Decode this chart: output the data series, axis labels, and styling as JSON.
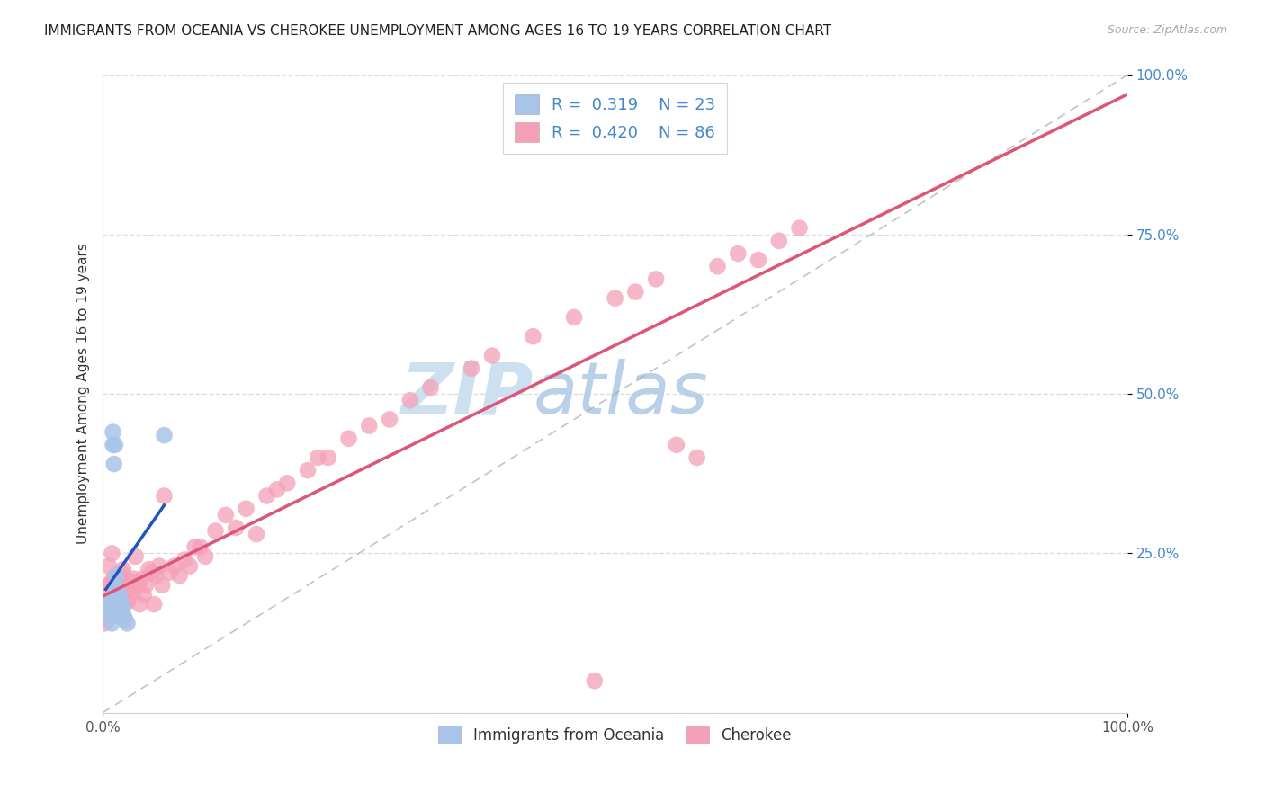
{
  "title": "IMMIGRANTS FROM OCEANIA VS CHEROKEE UNEMPLOYMENT AMONG AGES 16 TO 19 YEARS CORRELATION CHART",
  "source": "Source: ZipAtlas.com",
  "ylabel": "Unemployment Among Ages 16 to 19 years",
  "xlim": [
    0,
    1.0
  ],
  "ylim": [
    0,
    1.0
  ],
  "legend_r_oceania": "0.319",
  "legend_n_oceania": "23",
  "legend_r_cherokee": "0.420",
  "legend_n_cherokee": "86",
  "oceania_color": "#a8c4e8",
  "cherokee_color": "#f4a0b8",
  "oceania_line_color": "#2255bb",
  "cherokee_line_color": "#dd5577",
  "diagonal_color": "#aaaaaa",
  "watermark_zip": "ZIP",
  "watermark_atlas": "atlas",
  "watermark_color_zip": "#c8dff0",
  "watermark_color_atlas": "#b8cce8",
  "title_fontsize": 11,
  "source_fontsize": 9,
  "ylabel_fontsize": 11,
  "oceania_points_x": [
    0.005,
    0.007,
    0.008,
    0.009,
    0.01,
    0.01,
    0.011,
    0.012,
    0.013,
    0.013,
    0.014,
    0.015,
    0.015,
    0.016,
    0.017,
    0.018,
    0.019,
    0.02,
    0.021,
    0.022,
    0.024,
    0.06,
    0.003
  ],
  "oceania_points_y": [
    0.175,
    0.16,
    0.155,
    0.14,
    0.42,
    0.44,
    0.39,
    0.42,
    0.19,
    0.215,
    0.195,
    0.175,
    0.185,
    0.185,
    0.175,
    0.15,
    0.155,
    0.165,
    0.15,
    0.145,
    0.14,
    0.435,
    0.17
  ],
  "cherokee_points_x": [
    0.001,
    0.002,
    0.003,
    0.003,
    0.004,
    0.005,
    0.005,
    0.006,
    0.006,
    0.007,
    0.007,
    0.008,
    0.009,
    0.009,
    0.01,
    0.01,
    0.011,
    0.012,
    0.013,
    0.014,
    0.015,
    0.016,
    0.017,
    0.018,
    0.019,
    0.02,
    0.021,
    0.022,
    0.023,
    0.025,
    0.027,
    0.028,
    0.03,
    0.03,
    0.032,
    0.034,
    0.036,
    0.038,
    0.04,
    0.042,
    0.045,
    0.048,
    0.05,
    0.052,
    0.055,
    0.058,
    0.06,
    0.065,
    0.07,
    0.075,
    0.08,
    0.085,
    0.09,
    0.095,
    0.1,
    0.11,
    0.12,
    0.13,
    0.14,
    0.15,
    0.16,
    0.17,
    0.18,
    0.2,
    0.21,
    0.22,
    0.24,
    0.26,
    0.28,
    0.3,
    0.32,
    0.36,
    0.38,
    0.42,
    0.46,
    0.5,
    0.52,
    0.54,
    0.48,
    0.56,
    0.58,
    0.6,
    0.62,
    0.64,
    0.66,
    0.68
  ],
  "cherokee_points_y": [
    0.155,
    0.14,
    0.16,
    0.175,
    0.145,
    0.16,
    0.2,
    0.17,
    0.23,
    0.15,
    0.2,
    0.16,
    0.18,
    0.25,
    0.155,
    0.21,
    0.175,
    0.175,
    0.155,
    0.215,
    0.16,
    0.21,
    0.205,
    0.22,
    0.155,
    0.225,
    0.19,
    0.21,
    0.175,
    0.175,
    0.195,
    0.205,
    0.21,
    0.19,
    0.245,
    0.2,
    0.17,
    0.21,
    0.185,
    0.2,
    0.225,
    0.22,
    0.17,
    0.215,
    0.23,
    0.2,
    0.34,
    0.22,
    0.23,
    0.215,
    0.24,
    0.23,
    0.26,
    0.26,
    0.245,
    0.285,
    0.31,
    0.29,
    0.32,
    0.28,
    0.34,
    0.35,
    0.36,
    0.38,
    0.4,
    0.4,
    0.43,
    0.45,
    0.46,
    0.49,
    0.51,
    0.54,
    0.56,
    0.59,
    0.62,
    0.65,
    0.66,
    0.68,
    0.05,
    0.42,
    0.4,
    0.7,
    0.72,
    0.71,
    0.74,
    0.76
  ]
}
